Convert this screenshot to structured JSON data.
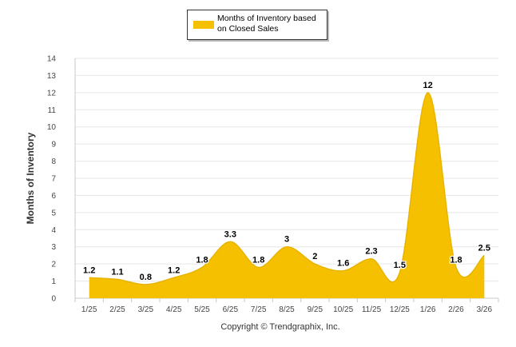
{
  "chart_data": {
    "type": "area",
    "series": [
      {
        "name": "Months of Inventory based on Closed Sales",
        "values": [
          1.2,
          1.1,
          0.8,
          1.2,
          1.8,
          3.3,
          1.8,
          3,
          2,
          1.6,
          2.3,
          1.5,
          12,
          1.8,
          2.5
        ],
        "color": "#f5c000"
      }
    ],
    "categories": [
      "1/25",
      "2/25",
      "3/25",
      "4/25",
      "5/25",
      "6/25",
      "7/25",
      "8/25",
      "9/25",
      "10/25",
      "11/25",
      "12/25",
      "1/26",
      "2/26",
      "3/26"
    ],
    "data_labels": [
      "1.2",
      "1.1",
      "0.8",
      "1.2",
      "1.8",
      "3.3",
      "1.8",
      "3",
      "2",
      "1.6",
      "2.3",
      "1.5",
      "12",
      "1.8",
      "2.5"
    ],
    "ylabel": "Months of Inventory",
    "xlabel": "",
    "ylim": [
      0,
      14
    ],
    "yticks": [
      "0",
      "1",
      "2",
      "3",
      "4",
      "5",
      "6",
      "7",
      "8",
      "9",
      "10",
      "11",
      "12",
      "13",
      "14"
    ],
    "grid": true,
    "legend": {
      "position": "top-center",
      "label": "Months of Inventory based on Closed Sales"
    },
    "footer": "Copyright © Trendgraphix, Inc."
  }
}
